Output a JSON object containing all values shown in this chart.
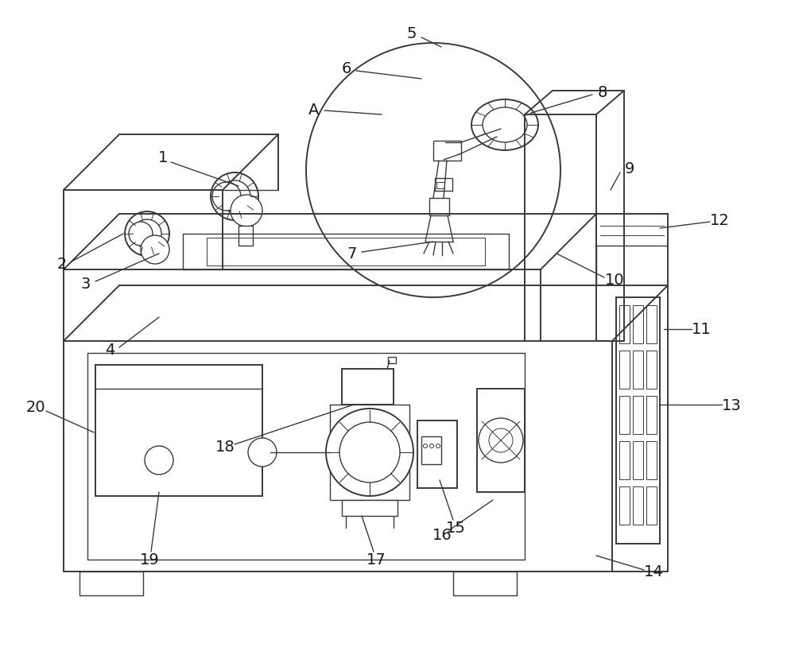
{
  "bg_color": "#ffffff",
  "lc": "#3a3a3a",
  "lw": 1.4,
  "lw2": 1.0,
  "lw3": 0.7,
  "figsize": [
    10.0,
    8.2
  ],
  "dpi": 100
}
